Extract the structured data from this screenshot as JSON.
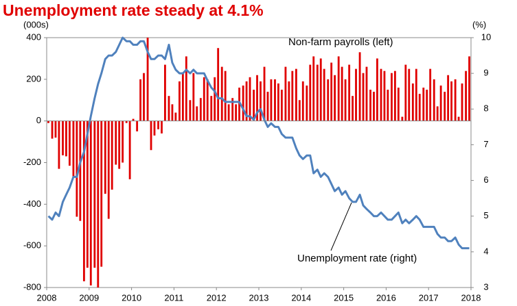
{
  "chart_data": {
    "type": "bar-line",
    "title": "Unemployment rate steady at 4.1%",
    "y_unit_label": "(000s)",
    "y2_unit_label": "(%)",
    "annotations": [
      "Non-farm payrolls (left)",
      "Unemployment rate (right)"
    ],
    "xlim": [
      2008,
      2018
    ],
    "xticks": [
      2008,
      2009,
      2010,
      2011,
      2012,
      2013,
      2014,
      2015,
      2016,
      2017,
      2018
    ],
    "ylim": [
      -800,
      400
    ],
    "yticks": [
      -800,
      -600,
      -400,
      -200,
      0,
      200,
      400
    ],
    "y2lim": [
      3,
      10
    ],
    "y2ticks": [
      3,
      4,
      5,
      6,
      7,
      8,
      9,
      10
    ],
    "x": [
      2008.04,
      2008.13,
      2008.21,
      2008.29,
      2008.38,
      2008.46,
      2008.54,
      2008.63,
      2008.71,
      2008.79,
      2008.88,
      2008.96,
      2009.04,
      2009.13,
      2009.21,
      2009.29,
      2009.38,
      2009.46,
      2009.54,
      2009.63,
      2009.71,
      2009.79,
      2009.88,
      2009.96,
      2010.04,
      2010.13,
      2010.21,
      2010.29,
      2010.38,
      2010.46,
      2010.54,
      2010.63,
      2010.71,
      2010.79,
      2010.88,
      2010.96,
      2011.04,
      2011.13,
      2011.21,
      2011.29,
      2011.38,
      2011.46,
      2011.54,
      2011.63,
      2011.71,
      2011.79,
      2011.88,
      2011.96,
      2012.04,
      2012.13,
      2012.21,
      2012.29,
      2012.38,
      2012.46,
      2012.54,
      2012.63,
      2012.71,
      2012.79,
      2012.88,
      2012.96,
      2013.04,
      2013.13,
      2013.21,
      2013.29,
      2013.38,
      2013.46,
      2013.54,
      2013.63,
      2013.71,
      2013.79,
      2013.88,
      2013.96,
      2014.04,
      2014.13,
      2014.21,
      2014.29,
      2014.38,
      2014.46,
      2014.54,
      2014.63,
      2014.71,
      2014.79,
      2014.88,
      2014.96,
      2015.04,
      2015.13,
      2015.21,
      2015.29,
      2015.38,
      2015.46,
      2015.54,
      2015.63,
      2015.71,
      2015.79,
      2015.88,
      2015.96,
      2016.04,
      2016.13,
      2016.21,
      2016.29,
      2016.38,
      2016.46,
      2016.54,
      2016.63,
      2016.71,
      2016.79,
      2016.88,
      2016.96,
      2017.04,
      2017.13,
      2017.21,
      2017.29,
      2017.38,
      2017.46,
      2017.54,
      2017.63,
      2017.71,
      2017.79,
      2017.88,
      2017.96
    ],
    "series": [
      {
        "name": "Non-farm payrolls",
        "color": "#e00000",
        "values": [
          -10,
          -85,
          -80,
          -230,
          -165,
          -170,
          -215,
          -270,
          -460,
          -480,
          -770,
          -705,
          -790,
          -705,
          -800,
          -700,
          -350,
          -470,
          -330,
          -210,
          -230,
          -200,
          -10,
          -280,
          10,
          -50,
          200,
          230,
          400,
          -140,
          -70,
          -40,
          -60,
          270,
          120,
          80,
          40,
          190,
          230,
          310,
          100,
          230,
          70,
          110,
          210,
          200,
          120,
          210,
          350,
          260,
          240,
          80,
          110,
          80,
          160,
          170,
          190,
          210,
          150,
          220,
          190,
          260,
          140,
          200,
          200,
          180,
          150,
          260,
          190,
          240,
          250,
          100,
          190,
          170,
          270,
          310,
          270,
          300,
          250,
          200,
          280,
          220,
          310,
          260,
          200,
          270,
          120,
          250,
          330,
          230,
          260,
          150,
          140,
          300,
          250,
          240,
          150,
          230,
          240,
          160,
          20,
          270,
          250,
          180,
          250,
          130,
          160,
          150,
          250,
          200,
          70,
          170,
          140,
          220,
          190,
          200,
          20,
          180,
          240,
          310
        ]
      },
      {
        "name": "Unemployment rate",
        "color": "#4f81bd",
        "axis": "y2",
        "values": [
          5.0,
          4.9,
          5.1,
          5.0,
          5.4,
          5.6,
          5.8,
          6.1,
          6.1,
          6.5,
          6.8,
          7.3,
          7.8,
          8.3,
          8.7,
          9.0,
          9.4,
          9.5,
          9.5,
          9.6,
          9.8,
          10.0,
          9.9,
          9.9,
          9.8,
          9.8,
          9.9,
          9.9,
          9.6,
          9.4,
          9.4,
          9.5,
          9.5,
          9.4,
          9.8,
          9.3,
          9.1,
          9.0,
          9.0,
          9.1,
          9.0,
          9.1,
          9.0,
          9.0,
          9.0,
          8.8,
          8.6,
          8.5,
          8.3,
          8.3,
          8.2,
          8.2,
          8.2,
          8.2,
          8.2,
          8.0,
          7.8,
          7.8,
          7.7,
          7.9,
          8.0,
          7.7,
          7.5,
          7.6,
          7.5,
          7.5,
          7.3,
          7.2,
          7.2,
          7.2,
          6.9,
          6.7,
          6.6,
          6.7,
          6.7,
          6.2,
          6.3,
          6.1,
          6.2,
          6.1,
          5.9,
          5.7,
          5.8,
          5.6,
          5.7,
          5.5,
          5.4,
          5.4,
          5.6,
          5.3,
          5.2,
          5.1,
          5.0,
          5.0,
          5.1,
          5.0,
          4.9,
          4.9,
          5.0,
          5.1,
          4.8,
          4.9,
          4.8,
          4.9,
          5.0,
          4.9,
          4.7,
          4.7,
          4.7,
          4.7,
          4.5,
          4.4,
          4.4,
          4.3,
          4.3,
          4.4,
          4.2,
          4.1,
          4.1,
          4.1
        ]
      }
    ]
  }
}
